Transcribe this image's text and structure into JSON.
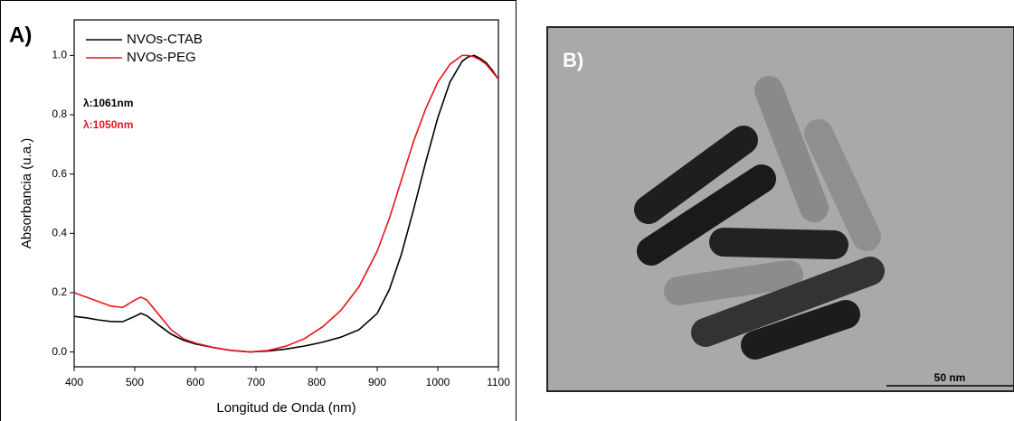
{
  "chart_data": {
    "type": "line",
    "panel_label": "A)",
    "x_label": "Longitud de Onda (nm)",
    "y_label": "Absorbancia (u.a.)",
    "x": [
      400,
      420,
      440,
      460,
      480,
      500,
      510,
      520,
      540,
      560,
      580,
      600,
      630,
      660,
      690,
      720,
      750,
      780,
      810,
      840,
      870,
      900,
      920,
      940,
      960,
      980,
      1000,
      1020,
      1040,
      1050,
      1060,
      1070,
      1080,
      1090,
      1100
    ],
    "series": [
      {
        "name": "NVOs-CTAB",
        "color": "#000000",
        "values": [
          0.12,
          0.115,
          0.108,
          0.103,
          0.102,
          0.12,
          0.13,
          0.122,
          0.09,
          0.06,
          0.04,
          0.027,
          0.015,
          0.005,
          0.0,
          0.003,
          0.01,
          0.02,
          0.033,
          0.05,
          0.075,
          0.13,
          0.21,
          0.33,
          0.48,
          0.64,
          0.79,
          0.91,
          0.98,
          0.995,
          1.0,
          0.99,
          0.975,
          0.95,
          0.92
        ]
      },
      {
        "name": "NVOs-PEG",
        "color": "#e8141b",
        "values": [
          0.2,
          0.185,
          0.17,
          0.155,
          0.15,
          0.175,
          0.185,
          0.175,
          0.125,
          0.075,
          0.045,
          0.03,
          0.015,
          0.005,
          0.0,
          0.005,
          0.02,
          0.045,
          0.085,
          0.14,
          0.22,
          0.34,
          0.45,
          0.58,
          0.71,
          0.82,
          0.91,
          0.97,
          1.0,
          1.0,
          0.995,
          0.985,
          0.97,
          0.945,
          0.92
        ]
      }
    ],
    "annotations": [
      {
        "text": "λ:1061nm",
        "color": "#000000"
      },
      {
        "text": "λ:1050nm",
        "color": "#e8141b"
      }
    ],
    "xlim": [
      400,
      1100
    ],
    "xticks": [
      400,
      500,
      600,
      700,
      800,
      900,
      1000,
      1100
    ],
    "ylim": [
      -0.05,
      1.12
    ],
    "yticks": [
      {
        "value": 0,
        "label": "0.0"
      },
      0.2,
      0.4,
      0.6,
      0.8,
      {
        "value": 1,
        "label": "1.0"
      }
    ],
    "legend": "upper-left"
  },
  "image": {
    "label": "B)",
    "scale_bar": "50 nm"
  }
}
